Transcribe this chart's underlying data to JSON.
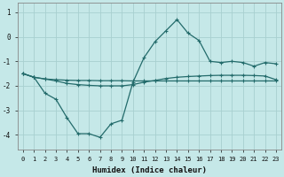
{
  "xlabel": "Humidex (Indice chaleur)",
  "bg_color": "#c5e8e8",
  "grid_color": "#a8d0d0",
  "line_color": "#236b6b",
  "xlim": [
    -0.5,
    23.5
  ],
  "ylim": [
    -4.6,
    1.4
  ],
  "yticks": [
    -4,
    -3,
    -2,
    -1,
    0,
    1
  ],
  "xticks": [
    0,
    1,
    2,
    3,
    4,
    5,
    6,
    7,
    8,
    9,
    10,
    11,
    12,
    13,
    14,
    15,
    16,
    17,
    18,
    19,
    20,
    21,
    22,
    23
  ],
  "line1_x": [
    0,
    1,
    2,
    3,
    4,
    5,
    6,
    7,
    8,
    9,
    10,
    11,
    12,
    13,
    14,
    15,
    16,
    17,
    18,
    19,
    20,
    21,
    22,
    23
  ],
  "line1_y": [
    -1.5,
    -1.65,
    -1.72,
    -1.75,
    -1.77,
    -1.78,
    -1.78,
    -1.79,
    -1.79,
    -1.79,
    -1.8,
    -1.8,
    -1.8,
    -1.8,
    -1.8,
    -1.8,
    -1.8,
    -1.8,
    -1.8,
    -1.8,
    -1.8,
    -1.8,
    -1.8,
    -1.8
  ],
  "line2_x": [
    0,
    1,
    2,
    3,
    4,
    5,
    6,
    7,
    8,
    9,
    10,
    11,
    12,
    13,
    14,
    15,
    16,
    17,
    18,
    19,
    20,
    21,
    22,
    23
  ],
  "line2_y": [
    -1.5,
    -1.65,
    -1.72,
    -1.8,
    -1.9,
    -1.95,
    -1.98,
    -2.0,
    -2.0,
    -2.0,
    -1.95,
    -1.85,
    -1.78,
    -1.7,
    -1.65,
    -1.62,
    -1.6,
    -1.58,
    -1.57,
    -1.57,
    -1.57,
    -1.58,
    -1.6,
    -1.75
  ],
  "line3_x": [
    0,
    1,
    2,
    3,
    4,
    5,
    6,
    7,
    8,
    9,
    10,
    11,
    12,
    13,
    14,
    15,
    16,
    17,
    18,
    19,
    20,
    21,
    22,
    23
  ],
  "line3_y": [
    -1.5,
    -1.65,
    -2.3,
    -2.55,
    -3.3,
    -3.95,
    -3.95,
    -4.1,
    -3.55,
    -3.4,
    -1.85,
    -0.85,
    -0.2,
    0.25,
    0.7,
    0.15,
    -0.15,
    -1.0,
    -1.05,
    -1.0,
    -1.05,
    -1.2,
    -1.05,
    -1.1
  ]
}
